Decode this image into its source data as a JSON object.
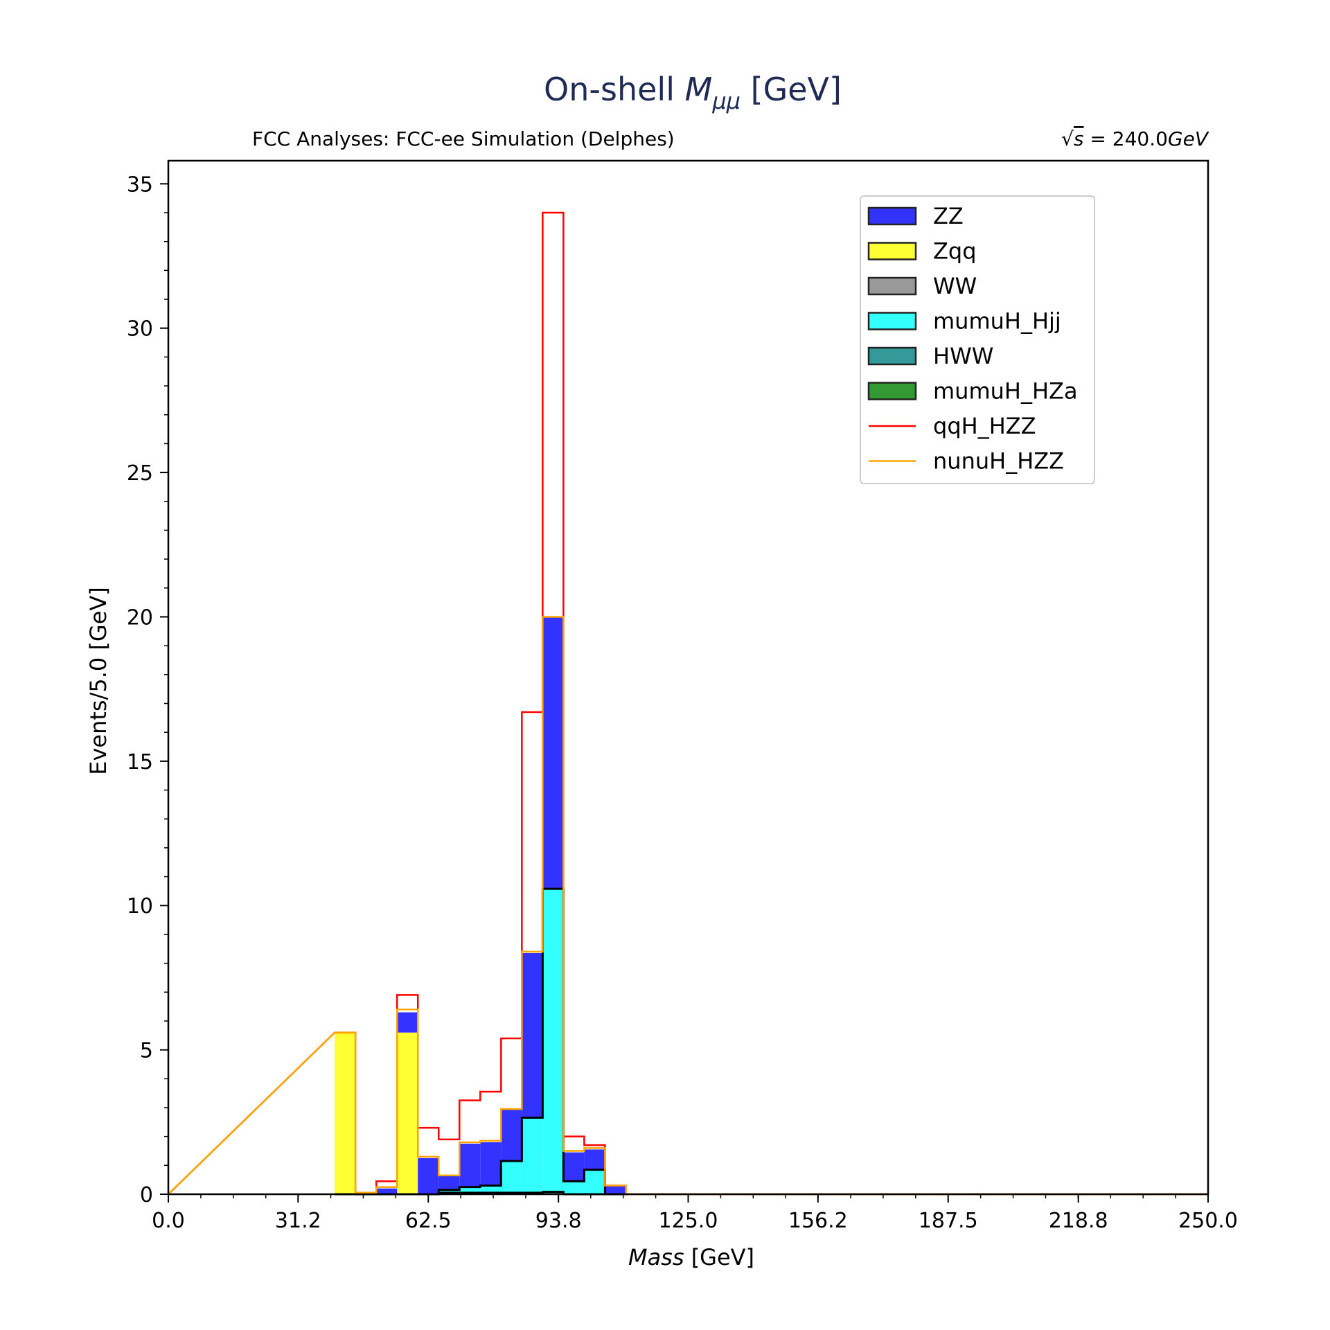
{
  "chart_data": {
    "type": "bar",
    "title_prefix": "On-shell ",
    "title_var": "M",
    "title_sub": "μμ",
    "title_suffix": " [GeV]",
    "subtitle_left": "FCC Analyses: FCC-ee Simulation (Delphes)",
    "subtitle_right_sqrt": "√",
    "subtitle_right_s": "s",
    "subtitle_right_eq": " = 240.0",
    "subtitle_right_unit": "GeV",
    "xlabel_var": "Mass",
    "xlabel_unit": " [GeV]",
    "ylabel": "Events/5.0 [GeV]",
    "xlim": [
      0,
      250
    ],
    "ylim": [
      0,
      35.8
    ],
    "xticks": [
      0.0,
      31.2,
      62.5,
      93.8,
      125.0,
      156.2,
      187.5,
      218.8,
      250.0
    ],
    "xtick_labels": [
      "0.0",
      "31.2",
      "62.5",
      "93.8",
      "125.0",
      "156.2",
      "187.5",
      "218.8",
      "250.0"
    ],
    "yticks": [
      0,
      5,
      10,
      15,
      20,
      25,
      30,
      35
    ],
    "ytick_labels": [
      "0",
      "5",
      "10",
      "15",
      "20",
      "25",
      "30",
      "35"
    ],
    "bin_width": 5,
    "bin_edges_start": 40,
    "bins": [
      40,
      45,
      50,
      55,
      60,
      65,
      70,
      75,
      80,
      85,
      90,
      95,
      100,
      105
    ],
    "stack_order": [
      "HWW",
      "mumuH_HZa",
      "mumuH_Hjj",
      "WW",
      "Zqq",
      "ZZ"
    ],
    "series": [
      {
        "name": "ZZ",
        "color": "#3333ff",
        "kind": "fill",
        "values": [
          0,
          0,
          0.2,
          0.7,
          1.25,
          0.5,
          1.5,
          1.5,
          1.8,
          5.7,
          9.4,
          1.0,
          0.7,
          0.3
        ]
      },
      {
        "name": "Zqq",
        "color": "#ffff33",
        "kind": "fill",
        "values": [
          5.6,
          0,
          0,
          5.6,
          0,
          0,
          0,
          0,
          0,
          0,
          0,
          0,
          0,
          0
        ]
      },
      {
        "name": "WW",
        "color": "#999999",
        "kind": "fill",
        "values": [
          0,
          0,
          0,
          0,
          0,
          0,
          0,
          0,
          0,
          0,
          0,
          0,
          0,
          0
        ]
      },
      {
        "name": "mumuH_Hjj",
        "color": "#33ffff",
        "kind": "fill",
        "values": [
          0,
          0,
          0,
          0,
          0,
          0.1,
          0.2,
          0.25,
          1.1,
          2.6,
          10.5,
          0.45,
          0.85,
          0
        ]
      },
      {
        "name": "HWW",
        "color": "#339999",
        "kind": "fill",
        "values": [
          0,
          0,
          0,
          0,
          0,
          0.05,
          0.05,
          0.05,
          0.05,
          0.05,
          0.08,
          0,
          0,
          0
        ]
      },
      {
        "name": "mumuH_HZa",
        "color": "#339933",
        "kind": "fill",
        "values": [
          0,
          0,
          0,
          0,
          0,
          0,
          0,
          0,
          0,
          0,
          0,
          0,
          0,
          0
        ]
      },
      {
        "name": "qqH_HZZ",
        "color": "#ff0000",
        "kind": "line",
        "values": [
          5.6,
          0.05,
          0.45,
          6.9,
          2.3,
          1.9,
          3.25,
          3.55,
          5.4,
          16.7,
          34.0,
          2.0,
          1.7,
          0.3
        ]
      },
      {
        "name": "nunuH_HZZ",
        "color": "#ffa500",
        "kind": "line",
        "values": [
          5.6,
          0.05,
          0.25,
          6.4,
          1.3,
          0.65,
          1.8,
          1.85,
          2.95,
          8.4,
          20.0,
          1.5,
          1.6,
          0.3
        ]
      }
    ],
    "legend_position": "upper-right"
  }
}
